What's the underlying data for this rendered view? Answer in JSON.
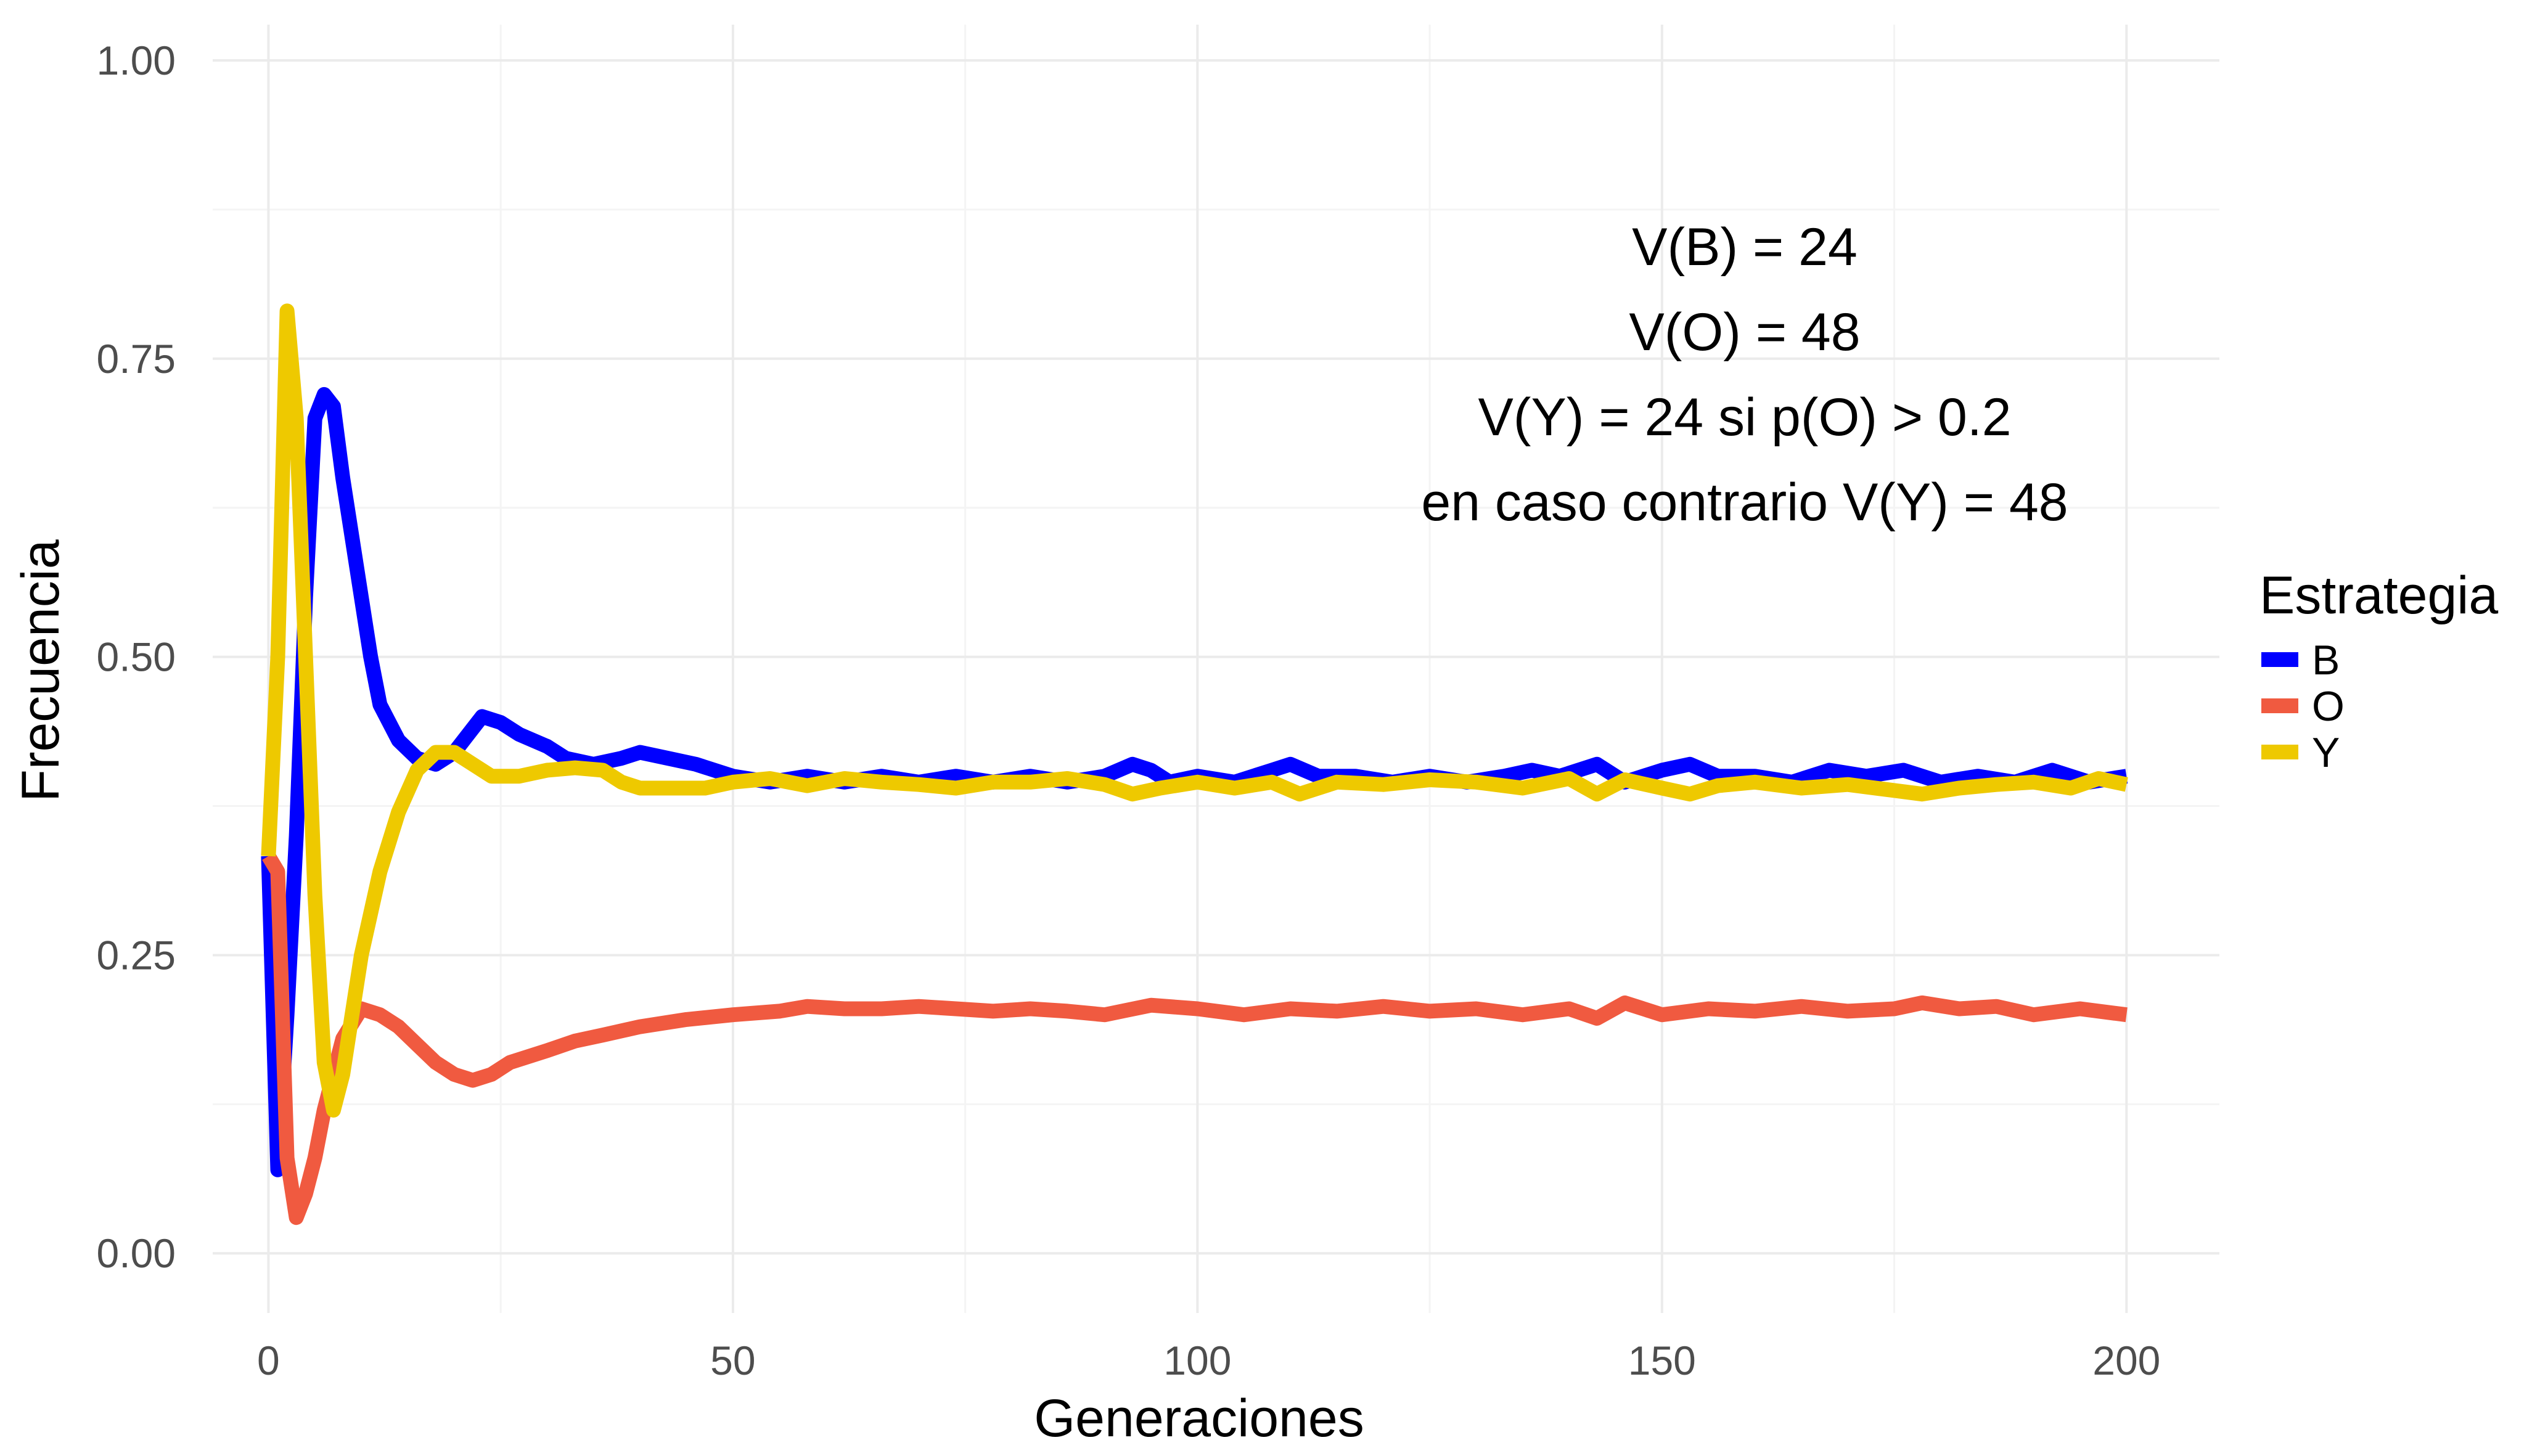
{
  "chart_data": {
    "type": "line",
    "xlabel": "Generaciones",
    "ylabel": "Frecuencia",
    "xlim": [
      -6,
      210
    ],
    "ylim": [
      -0.05,
      1.03
    ],
    "x_ticks": [
      0,
      50,
      100,
      150,
      200
    ],
    "x_tick_labels": [
      "0",
      "50",
      "100",
      "150",
      "200"
    ],
    "y_ticks": [
      0,
      0.25,
      0.5,
      0.75,
      1
    ],
    "y_tick_labels": [
      "0.00",
      "0.25",
      "0.50",
      "0.75",
      "1.00"
    ],
    "grid": true,
    "legend": {
      "title": "Estrategia",
      "position": "right"
    },
    "annotations": [
      "V(B) = 24",
      "V(O) = 48",
      "V(Y) = 24 si p(O) > 0.2",
      "en caso contrario V(Y) = 48"
    ],
    "series": [
      {
        "name": "B",
        "color": "#0000ff",
        "points": [
          [
            0,
            0.333
          ],
          [
            1,
            0.07
          ],
          [
            2,
            0.2
          ],
          [
            3,
            0.35
          ],
          [
            4,
            0.55
          ],
          [
            5,
            0.7
          ],
          [
            6,
            0.72
          ],
          [
            7,
            0.71
          ],
          [
            8,
            0.65
          ],
          [
            10,
            0.55
          ],
          [
            11,
            0.5
          ],
          [
            12,
            0.46
          ],
          [
            14,
            0.43
          ],
          [
            16,
            0.415
          ],
          [
            18,
            0.41
          ],
          [
            20,
            0.42
          ],
          [
            22,
            0.44
          ],
          [
            23,
            0.45
          ],
          [
            25,
            0.445
          ],
          [
            27,
            0.435
          ],
          [
            30,
            0.425
          ],
          [
            32,
            0.415
          ],
          [
            35,
            0.41
          ],
          [
            38,
            0.415
          ],
          [
            40,
            0.42
          ],
          [
            43,
            0.415
          ],
          [
            46,
            0.41
          ],
          [
            50,
            0.4
          ],
          [
            54,
            0.395
          ],
          [
            58,
            0.4
          ],
          [
            62,
            0.395
          ],
          [
            66,
            0.4
          ],
          [
            70,
            0.395
          ],
          [
            74,
            0.4
          ],
          [
            78,
            0.395
          ],
          [
            82,
            0.4
          ],
          [
            86,
            0.395
          ],
          [
            90,
            0.4
          ],
          [
            93,
            0.41
          ],
          [
            95,
            0.405
          ],
          [
            97,
            0.395
          ],
          [
            100,
            0.4
          ],
          [
            104,
            0.395
          ],
          [
            108,
            0.405
          ],
          [
            110,
            0.41
          ],
          [
            113,
            0.4
          ],
          [
            117,
            0.4
          ],
          [
            121,
            0.395
          ],
          [
            125,
            0.4
          ],
          [
            129,
            0.395
          ],
          [
            133,
            0.4
          ],
          [
            136,
            0.405
          ],
          [
            139,
            0.4
          ],
          [
            143,
            0.41
          ],
          [
            146,
            0.395
          ],
          [
            150,
            0.405
          ],
          [
            153,
            0.41
          ],
          [
            156,
            0.4
          ],
          [
            160,
            0.4
          ],
          [
            164,
            0.395
          ],
          [
            168,
            0.405
          ],
          [
            172,
            0.4
          ],
          [
            176,
            0.405
          ],
          [
            180,
            0.395
          ],
          [
            184,
            0.4
          ],
          [
            188,
            0.395
          ],
          [
            192,
            0.405
          ],
          [
            196,
            0.395
          ],
          [
            200,
            0.4
          ]
        ]
      },
      {
        "name": "O",
        "color": "#f05a40",
        "points": [
          [
            0,
            0.333
          ],
          [
            1,
            0.32
          ],
          [
            2,
            0.08
          ],
          [
            3,
            0.03
          ],
          [
            4,
            0.05
          ],
          [
            5,
            0.08
          ],
          [
            6,
            0.12
          ],
          [
            8,
            0.18
          ],
          [
            10,
            0.205
          ],
          [
            12,
            0.2
          ],
          [
            14,
            0.19
          ],
          [
            16,
            0.175
          ],
          [
            18,
            0.16
          ],
          [
            20,
            0.15
          ],
          [
            22,
            0.145
          ],
          [
            24,
            0.15
          ],
          [
            26,
            0.16
          ],
          [
            30,
            0.17
          ],
          [
            33,
            0.178
          ],
          [
            36,
            0.183
          ],
          [
            40,
            0.19
          ],
          [
            45,
            0.196
          ],
          [
            50,
            0.2
          ],
          [
            55,
            0.203
          ],
          [
            58,
            0.207
          ],
          [
            62,
            0.205
          ],
          [
            66,
            0.205
          ],
          [
            70,
            0.207
          ],
          [
            74,
            0.205
          ],
          [
            78,
            0.203
          ],
          [
            82,
            0.205
          ],
          [
            86,
            0.203
          ],
          [
            90,
            0.2
          ],
          [
            95,
            0.208
          ],
          [
            100,
            0.205
          ],
          [
            105,
            0.2
          ],
          [
            110,
            0.205
          ],
          [
            115,
            0.203
          ],
          [
            120,
            0.207
          ],
          [
            125,
            0.203
          ],
          [
            130,
            0.205
          ],
          [
            135,
            0.2
          ],
          [
            140,
            0.205
          ],
          [
            143,
            0.197
          ],
          [
            146,
            0.21
          ],
          [
            150,
            0.2
          ],
          [
            155,
            0.205
          ],
          [
            160,
            0.203
          ],
          [
            165,
            0.207
          ],
          [
            170,
            0.203
          ],
          [
            175,
            0.205
          ],
          [
            178,
            0.21
          ],
          [
            182,
            0.205
          ],
          [
            186,
            0.207
          ],
          [
            190,
            0.2
          ],
          [
            195,
            0.205
          ],
          [
            200,
            0.2
          ]
        ]
      },
      {
        "name": "Y",
        "color": "#eec900",
        "points": [
          [
            0,
            0.333
          ],
          [
            1,
            0.5
          ],
          [
            2,
            0.79
          ],
          [
            3,
            0.7
          ],
          [
            4,
            0.5
          ],
          [
            5,
            0.3
          ],
          [
            6,
            0.16
          ],
          [
            7,
            0.12
          ],
          [
            8,
            0.15
          ],
          [
            9,
            0.2
          ],
          [
            10,
            0.25
          ],
          [
            12,
            0.32
          ],
          [
            14,
            0.37
          ],
          [
            16,
            0.405
          ],
          [
            18,
            0.42
          ],
          [
            20,
            0.42
          ],
          [
            22,
            0.41
          ],
          [
            24,
            0.4
          ],
          [
            27,
            0.4
          ],
          [
            30,
            0.405
          ],
          [
            33,
            0.407
          ],
          [
            36,
            0.405
          ],
          [
            38,
            0.395
          ],
          [
            40,
            0.39
          ],
          [
            44,
            0.39
          ],
          [
            47,
            0.39
          ],
          [
            50,
            0.395
          ],
          [
            54,
            0.398
          ],
          [
            58,
            0.392
          ],
          [
            62,
            0.398
          ],
          [
            66,
            0.395
          ],
          [
            70,
            0.393
          ],
          [
            74,
            0.39
          ],
          [
            78,
            0.395
          ],
          [
            82,
            0.395
          ],
          [
            86,
            0.398
          ],
          [
            90,
            0.393
          ],
          [
            93,
            0.385
          ],
          [
            96,
            0.39
          ],
          [
            100,
            0.395
          ],
          [
            104,
            0.39
          ],
          [
            108,
            0.395
          ],
          [
            111,
            0.385
          ],
          [
            115,
            0.395
          ],
          [
            120,
            0.393
          ],
          [
            125,
            0.397
          ],
          [
            130,
            0.395
          ],
          [
            135,
            0.39
          ],
          [
            140,
            0.398
          ],
          [
            143,
            0.385
          ],
          [
            146,
            0.397
          ],
          [
            150,
            0.39
          ],
          [
            153,
            0.385
          ],
          [
            156,
            0.392
          ],
          [
            160,
            0.395
          ],
          [
            165,
            0.39
          ],
          [
            170,
            0.393
          ],
          [
            175,
            0.388
          ],
          [
            178,
            0.385
          ],
          [
            182,
            0.39
          ],
          [
            186,
            0.393
          ],
          [
            190,
            0.395
          ],
          [
            194,
            0.39
          ],
          [
            197,
            0.398
          ],
          [
            200,
            0.393
          ]
        ]
      }
    ]
  }
}
